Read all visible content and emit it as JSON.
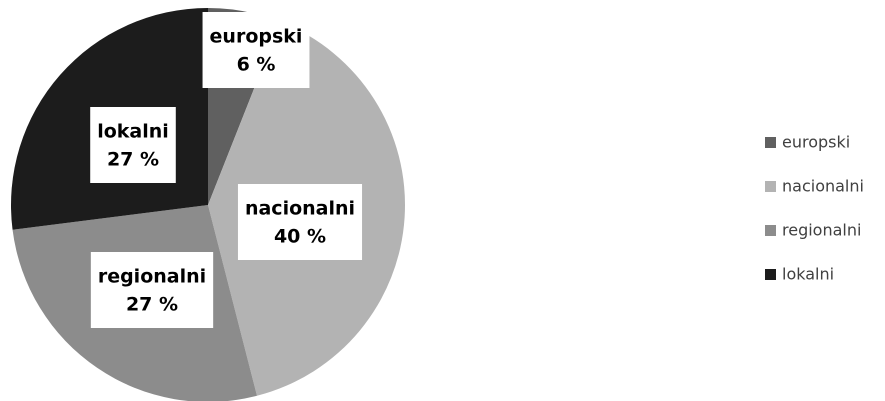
{
  "chart_data": {
    "type": "pie",
    "categories": [
      "europski",
      "nacionalni",
      "regionalni",
      "lokalni"
    ],
    "values": [
      6,
      40,
      27,
      27
    ],
    "value_labels": [
      "6 %",
      "40 %",
      "27 %",
      "27 %"
    ],
    "colors": [
      "#606060",
      "#b3b3b3",
      "#8c8c8c",
      "#1c1c1c"
    ],
    "legend": "right"
  }
}
